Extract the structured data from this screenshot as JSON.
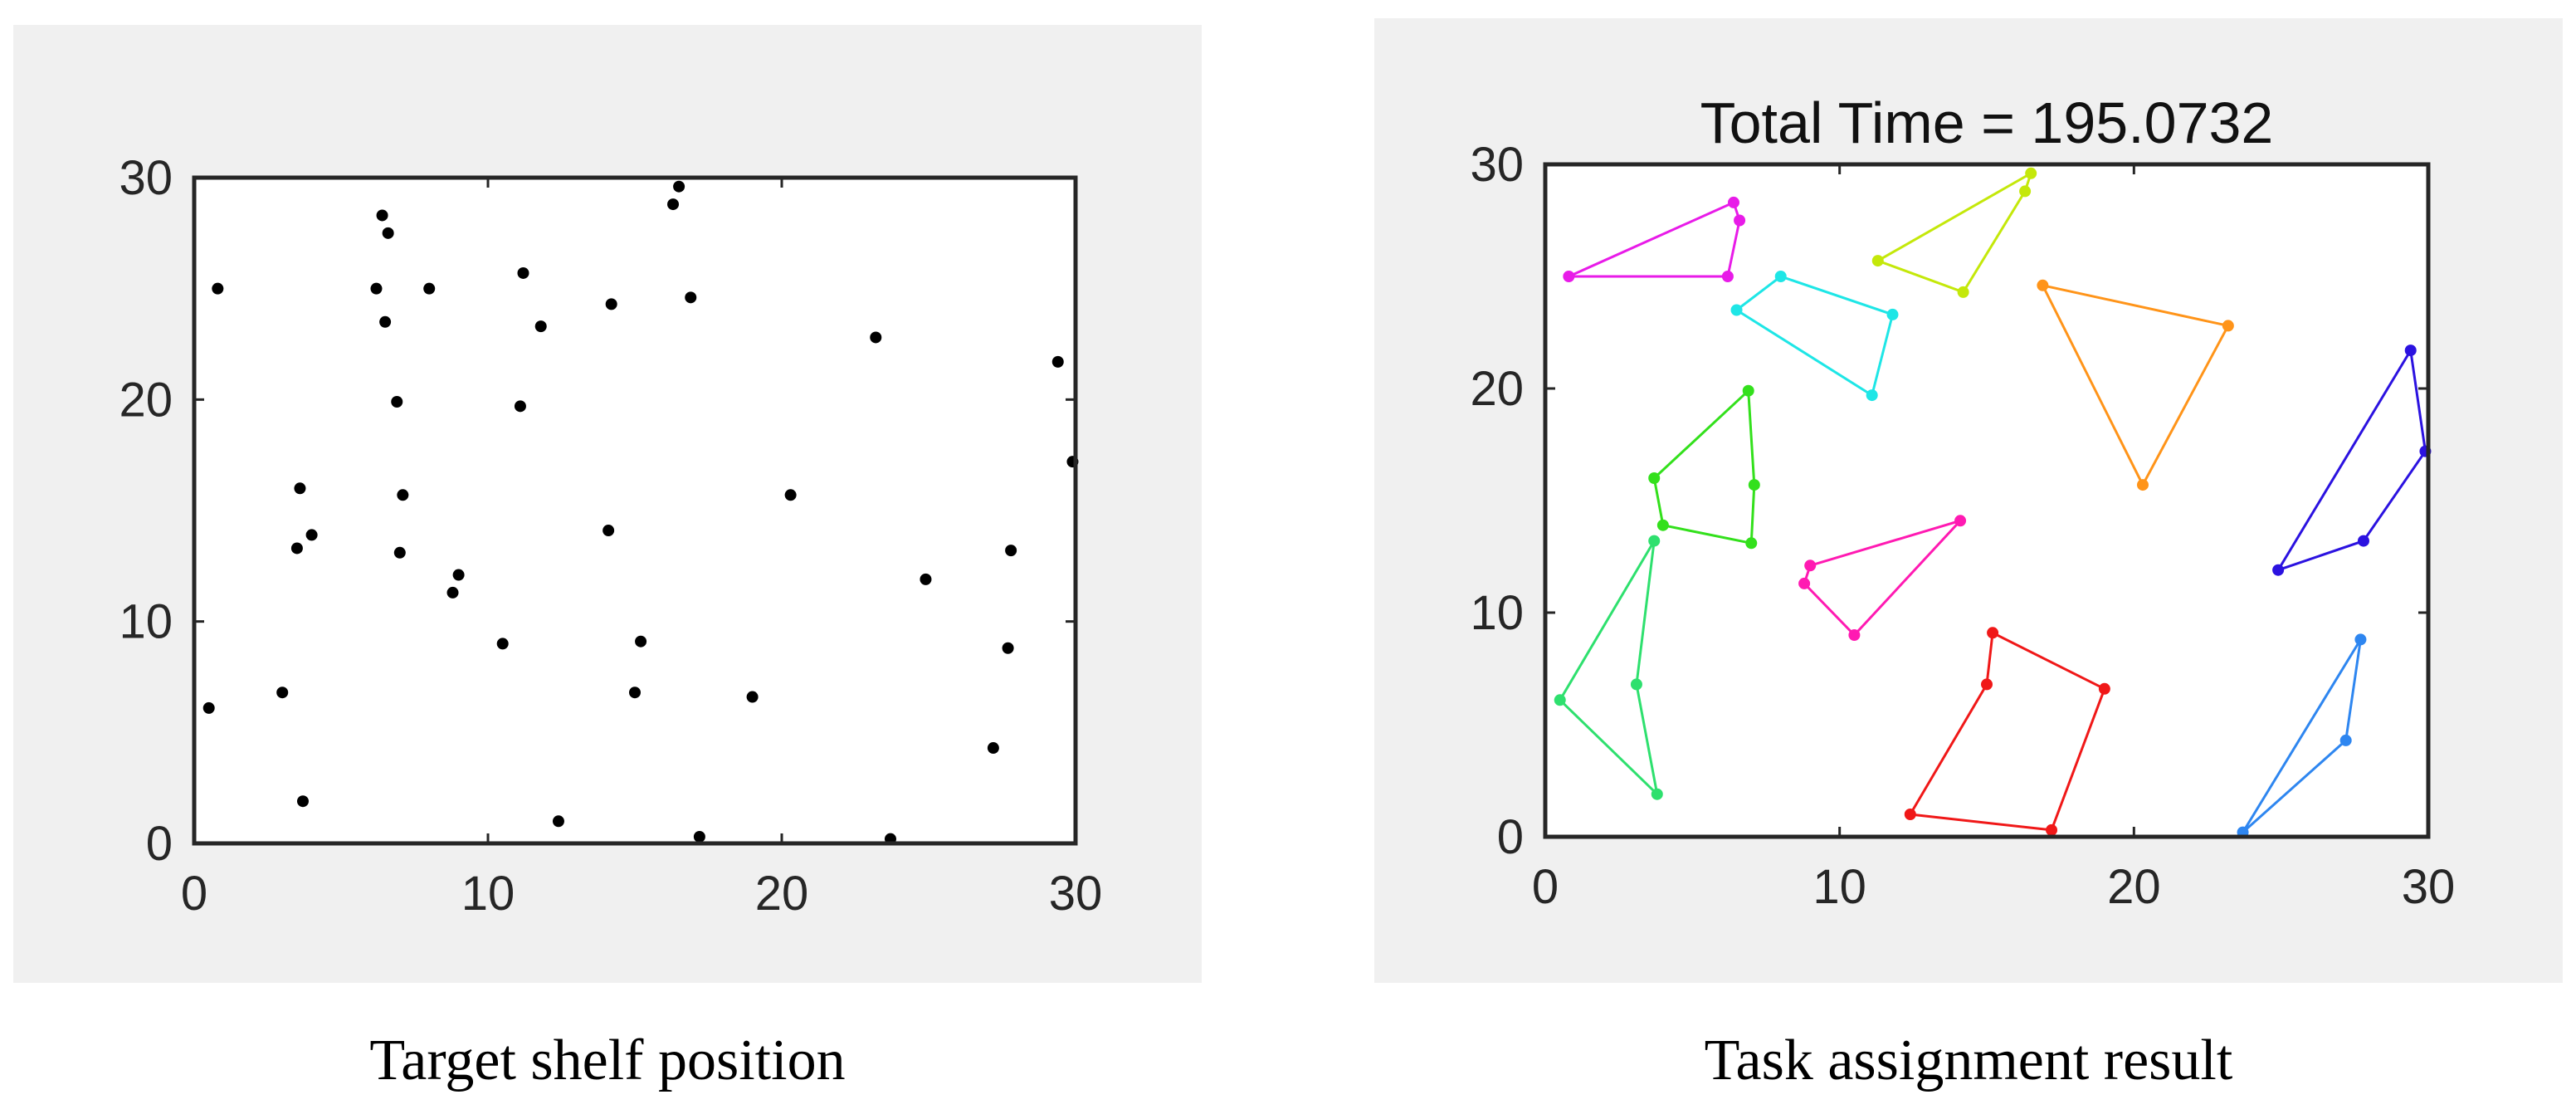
{
  "chart_data": [
    {
      "type": "scatter",
      "title": "",
      "caption": "Target shelf position",
      "xlim": [
        0,
        30
      ],
      "ylim": [
        0,
        30
      ],
      "xticks": [
        0,
        10,
        20,
        30
      ],
      "yticks": [
        0,
        10,
        20,
        30
      ],
      "grid": false,
      "marker_color": "#000000",
      "points": [
        [
          0.8,
          25.0
        ],
        [
          0.5,
          6.1
        ],
        [
          3.0,
          6.8
        ],
        [
          3.6,
          16.0
        ],
        [
          3.5,
          13.3
        ],
        [
          4.0,
          13.9
        ],
        [
          3.7,
          1.9
        ],
        [
          6.2,
          25.0
        ],
        [
          6.4,
          28.3
        ],
        [
          6.6,
          27.5
        ],
        [
          6.5,
          23.5
        ],
        [
          6.9,
          19.9
        ],
        [
          7.1,
          15.7
        ],
        [
          7.0,
          13.1
        ],
        [
          8.0,
          25.0
        ],
        [
          8.8,
          11.3
        ],
        [
          9.0,
          12.1
        ],
        [
          10.5,
          9.0
        ],
        [
          11.2,
          25.7
        ],
        [
          11.1,
          19.7
        ],
        [
          11.8,
          23.3
        ],
        [
          12.4,
          1.0
        ],
        [
          14.1,
          14.1
        ],
        [
          14.2,
          24.3
        ],
        [
          15.0,
          6.8
        ],
        [
          15.2,
          9.1
        ],
        [
          16.3,
          28.8
        ],
        [
          16.5,
          29.6
        ],
        [
          16.9,
          24.6
        ],
        [
          17.2,
          0.3
        ],
        [
          19.0,
          6.6
        ],
        [
          20.3,
          15.7
        ],
        [
          23.2,
          22.8
        ],
        [
          23.7,
          0.2
        ],
        [
          24.9,
          11.9
        ],
        [
          27.2,
          4.3
        ],
        [
          27.7,
          8.8
        ],
        [
          27.8,
          13.2
        ],
        [
          29.4,
          21.7
        ],
        [
          29.9,
          17.2
        ]
      ]
    },
    {
      "type": "line",
      "title": "Total Time = 195.0732",
      "caption": "Task assignment result",
      "xlim": [
        0,
        30
      ],
      "ylim": [
        0,
        30
      ],
      "xticks": [
        0,
        10,
        20,
        30
      ],
      "yticks": [
        0,
        10,
        20,
        30
      ],
      "grid": false,
      "series": [
        {
          "color": "#e81be8",
          "points": [
            [
              0.8,
              25.0
            ],
            [
              6.4,
              28.3
            ],
            [
              6.6,
              27.5
            ],
            [
              6.2,
              25.0
            ]
          ],
          "closed": true
        },
        {
          "color": "#c4e80a",
          "points": [
            [
              11.3,
              25.7
            ],
            [
              16.5,
              29.6
            ],
            [
              16.3,
              28.8
            ],
            [
              14.2,
              24.3
            ]
          ],
          "closed": true
        },
        {
          "color": "#1ee6e6",
          "points": [
            [
              6.5,
              23.5
            ],
            [
              8.0,
              25.0
            ],
            [
              11.8,
              23.3
            ],
            [
              11.1,
              19.7
            ]
          ],
          "closed": true
        },
        {
          "color": "#ff9419",
          "points": [
            [
              16.9,
              24.6
            ],
            [
              23.2,
              22.8
            ],
            [
              20.3,
              15.7
            ]
          ],
          "closed": true
        },
        {
          "color": "#2b12e0",
          "points": [
            [
              29.4,
              21.7
            ],
            [
              29.9,
              17.2
            ],
            [
              27.8,
              13.2
            ],
            [
              24.9,
              11.9
            ]
          ],
          "closed": true
        },
        {
          "color": "#33e01c",
          "points": [
            [
              6.9,
              19.9
            ],
            [
              3.7,
              16.0
            ],
            [
              4.0,
              13.9
            ],
            [
              7.0,
              13.1
            ],
            [
              7.1,
              15.7
            ]
          ],
          "closed": true
        },
        {
          "color": "#ff1ab2",
          "points": [
            [
              9.0,
              12.1
            ],
            [
              8.8,
              11.3
            ],
            [
              10.5,
              9.0
            ],
            [
              14.1,
              14.1
            ]
          ],
          "closed": true
        },
        {
          "color": "#2ee06e",
          "points": [
            [
              3.7,
              13.2
            ],
            [
              0.5,
              6.1
            ],
            [
              3.8,
              1.9
            ],
            [
              3.1,
              6.8
            ]
          ],
          "closed": true
        },
        {
          "color": "#f01818",
          "points": [
            [
              15.2,
              9.1
            ],
            [
              19.0,
              6.6
            ],
            [
              17.2,
              0.3
            ],
            [
              12.4,
              1.0
            ],
            [
              15.0,
              6.8
            ]
          ],
          "closed": true
        },
        {
          "color": "#2e86f0",
          "points": [
            [
              27.7,
              8.8
            ],
            [
              27.2,
              4.3
            ],
            [
              23.7,
              0.2
            ]
          ],
          "closed": true
        }
      ]
    }
  ]
}
